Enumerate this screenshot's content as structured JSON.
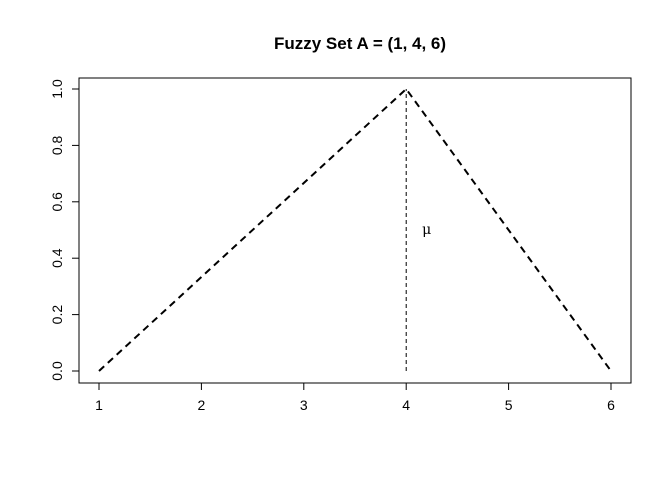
{
  "chart_data": {
    "type": "line",
    "title": "Fuzzy Set A = (1, 4, 6)",
    "xlabel": "",
    "ylabel": "",
    "xlim": [
      1,
      6
    ],
    "ylim": [
      0,
      1
    ],
    "x_ticks": [
      1,
      2,
      3,
      4,
      5,
      6
    ],
    "y_ticks": [
      "0.0",
      "0.2",
      "0.4",
      "0.6",
      "0.8",
      "1.0"
    ],
    "grid": false,
    "legend": "none",
    "series": [
      {
        "x": [
          1,
          4,
          6
        ],
        "y": [
          0,
          1,
          0
        ],
        "style": "dashed",
        "color": "#000000"
      }
    ],
    "guide_line": {
      "x": 4,
      "y": [
        0,
        1
      ],
      "style": "dashed"
    },
    "annotations": [
      {
        "text": "μ",
        "x": 4.2,
        "y": 0.5
      }
    ]
  }
}
